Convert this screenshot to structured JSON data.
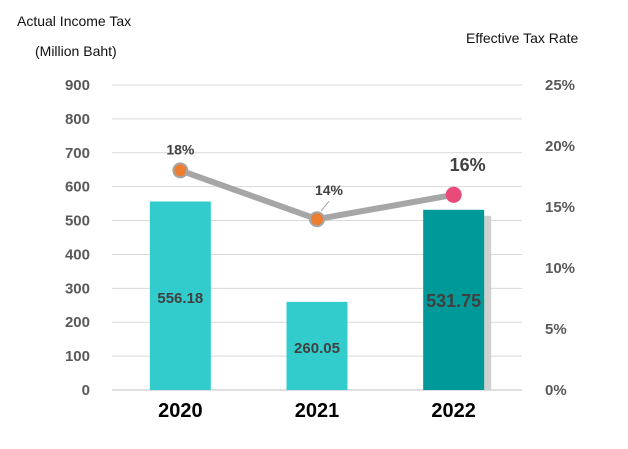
{
  "chart_data": {
    "type": "bar",
    "categories": [
      "2020",
      "2021",
      "2022"
    ],
    "series": [
      {
        "name": "Actual Income Tax",
        "type": "bar",
        "axis": "left",
        "values": [
          556.18,
          260.05,
          531.75
        ],
        "value_labels": [
          "556.18",
          "260.05",
          "531.75"
        ],
        "colors": [
          "#33cccc",
          "#33cccc",
          "#009999"
        ]
      },
      {
        "name": "Effective Tax Rate",
        "type": "line",
        "axis": "right",
        "values": [
          18,
          14,
          16
        ],
        "value_labels": [
          "18%",
          "14%",
          "16%"
        ],
        "marker_colors": [
          "#ed7d31",
          "#ed7d31",
          "#e84a7a"
        ],
        "line_color": "#a6a6a6"
      }
    ],
    "ylabel_left_line1": "Actual Income Tax",
    "ylabel_left_line2": "(Million Baht)",
    "ylabel_right": "Effective Tax Rate",
    "ylim_left": [
      0,
      900
    ],
    "yticks_left": [
      "0",
      "100",
      "200",
      "300",
      "400",
      "500",
      "600",
      "700",
      "800",
      "900"
    ],
    "ylim_right": [
      0,
      25
    ],
    "yticks_right": [
      "0%",
      "5%",
      "10%",
      "15%",
      "20%",
      "25%"
    ],
    "grid": "horizontal",
    "gridline_color": "#d9d9d9",
    "tick_label_color": "#595959"
  }
}
